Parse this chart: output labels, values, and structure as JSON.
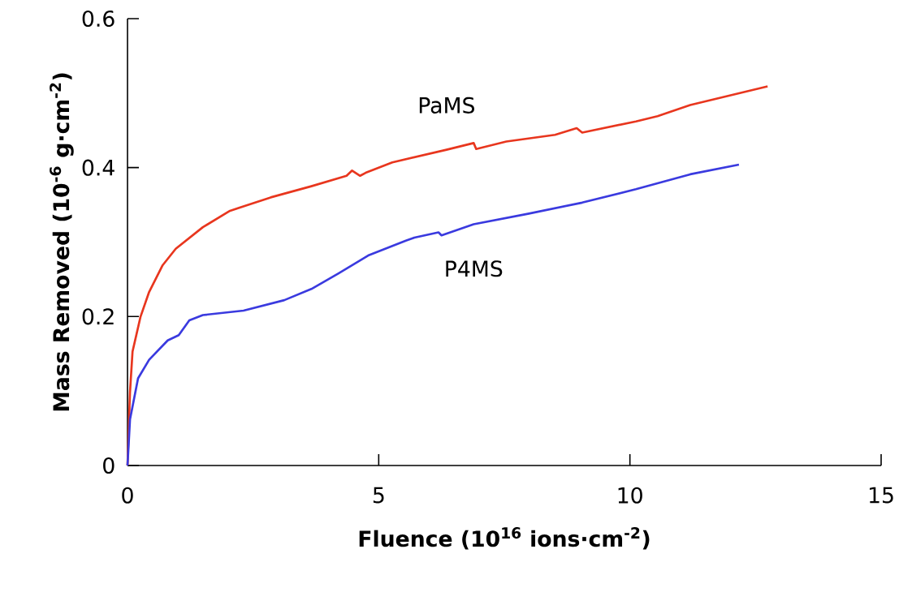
{
  "chart_data": {
    "type": "line",
    "xlabel": "Fluence (10$^{16}$ ions·cm$^{-2}$)",
    "ylabel": "Mass Removed (10$^{-6}$ g·cm$^{-2}$)",
    "xlim": [
      0,
      15
    ],
    "ylim": [
      0,
      0.6
    ],
    "xticks": [
      0,
      5,
      10,
      15
    ],
    "yticks": [
      0,
      0.2,
      0.4,
      0.6
    ],
    "grid": false,
    "legend": false,
    "marker": "none",
    "line_style": "solid",
    "series": [
      {
        "name": "PaMS",
        "color": "#e8361e",
        "x": [
          0,
          0.05,
          0.1,
          0.26,
          0.43,
          0.7,
          0.96,
          1.5,
          2.04,
          2.85,
          3.66,
          4.36,
          4.47,
          4.63,
          4.74,
          5.27,
          6.35,
          6.89,
          6.94,
          7.54,
          8.51,
          8.94,
          9.05,
          10.12,
          10.55,
          11.2,
          12.74
        ],
        "values": [
          0,
          0.099,
          0.153,
          0.2,
          0.233,
          0.269,
          0.291,
          0.32,
          0.342,
          0.36,
          0.375,
          0.389,
          0.396,
          0.389,
          0.393,
          0.407,
          0.424,
          0.433,
          0.425,
          0.435,
          0.444,
          0.453,
          0.447,
          0.462,
          0.469,
          0.484,
          0.509
        ]
      },
      {
        "name": "P4MS",
        "color": "#3a3adf",
        "x": [
          0,
          0.05,
          0.21,
          0.43,
          0.8,
          1.02,
          1.23,
          1.5,
          2.31,
          3.12,
          3.66,
          4.2,
          4.79,
          5.54,
          5.71,
          6.19,
          6.25,
          6.89,
          7.97,
          9.05,
          10.12,
          11.2,
          12.17
        ],
        "values": [
          0,
          0.062,
          0.117,
          0.142,
          0.168,
          0.175,
          0.195,
          0.202,
          0.208,
          0.222,
          0.237,
          0.258,
          0.282,
          0.302,
          0.306,
          0.313,
          0.309,
          0.324,
          0.338,
          0.353,
          0.371,
          0.391,
          0.404
        ]
      }
    ]
  }
}
